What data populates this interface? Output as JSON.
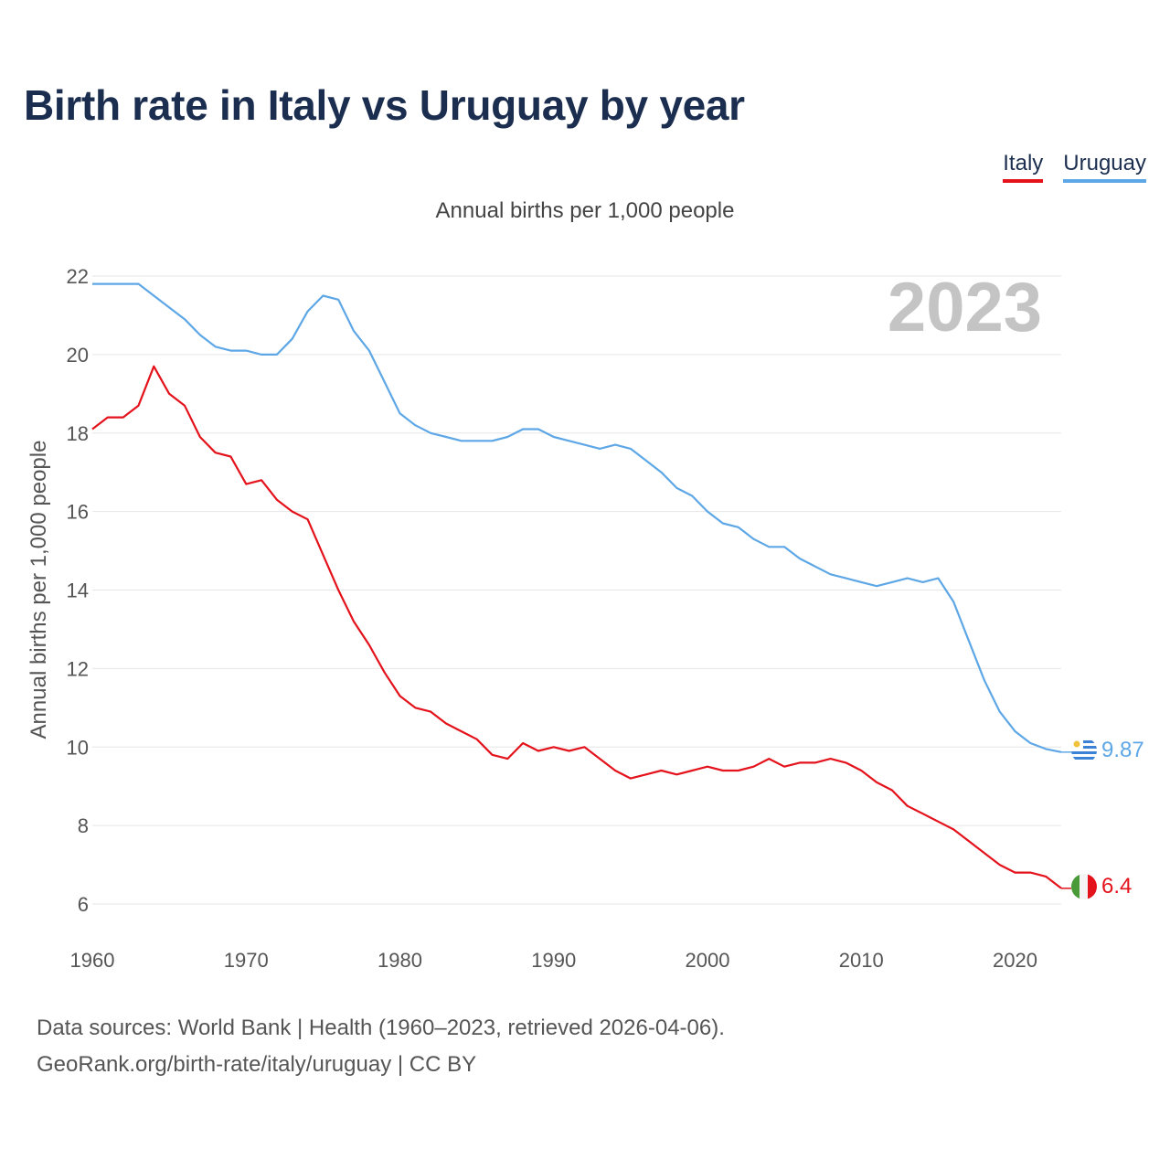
{
  "header": {
    "title": "Birth rate in Italy vs Uruguay by year",
    "subtitle": "Annual births per 1,000 people"
  },
  "legend": [
    {
      "label": "Italy",
      "color": "#e3121b"
    },
    {
      "label": "Uruguay",
      "color": "#5ea7e6"
    }
  ],
  "footer": {
    "line1": "Data sources: World Bank | Health (1960–2023, retrieved 2026-04-06).",
    "line2": "GeoRank.org/birth-rate/italy/uruguay | CC BY"
  },
  "chart_data": {
    "type": "line",
    "title": "Birth rate in Italy vs Uruguay by year",
    "subtitle": "Annual births per 1,000 people",
    "xlabel": "",
    "ylabel": "Annual births per 1,000 people",
    "xlim": [
      1960,
      2023
    ],
    "ylim": [
      5.5,
      23
    ],
    "x_ticks": [
      1960,
      1970,
      1980,
      1990,
      2000,
      2010,
      2020
    ],
    "y_ticks": [
      6,
      8,
      10,
      12,
      14,
      16,
      18,
      20,
      22
    ],
    "grid": true,
    "year_overlay": "2023",
    "legend_position": "top-right",
    "x": [
      1960,
      1961,
      1962,
      1963,
      1964,
      1965,
      1966,
      1967,
      1968,
      1969,
      1970,
      1971,
      1972,
      1973,
      1974,
      1975,
      1976,
      1977,
      1978,
      1979,
      1980,
      1981,
      1982,
      1983,
      1984,
      1985,
      1986,
      1987,
      1988,
      1989,
      1990,
      1991,
      1992,
      1993,
      1994,
      1995,
      1996,
      1997,
      1998,
      1999,
      2000,
      2001,
      2002,
      2003,
      2004,
      2005,
      2006,
      2007,
      2008,
      2009,
      2010,
      2011,
      2012,
      2013,
      2014,
      2015,
      2016,
      2017,
      2018,
      2019,
      2020,
      2021,
      2022,
      2023
    ],
    "series": [
      {
        "name": "Italy",
        "color": "#e3121b",
        "end_label": "6.4",
        "values": [
          18.1,
          18.4,
          18.4,
          18.7,
          19.7,
          19.0,
          18.7,
          17.9,
          17.5,
          17.4,
          16.7,
          16.8,
          16.3,
          16.0,
          15.8,
          14.9,
          14.0,
          13.2,
          12.6,
          11.9,
          11.3,
          11.0,
          10.9,
          10.6,
          10.4,
          10.2,
          9.8,
          9.7,
          10.1,
          9.9,
          10.0,
          9.9,
          10.0,
          9.7,
          9.4,
          9.2,
          9.3,
          9.4,
          9.3,
          9.4,
          9.5,
          9.4,
          9.4,
          9.5,
          9.7,
          9.5,
          9.6,
          9.6,
          9.7,
          9.6,
          9.4,
          9.1,
          8.9,
          8.5,
          8.3,
          8.1,
          7.9,
          7.6,
          7.3,
          7.0,
          6.8,
          6.8,
          6.7,
          6.4
        ]
      },
      {
        "name": "Uruguay",
        "color": "#5ea7e6",
        "end_label": "9.87",
        "values": [
          21.8,
          21.8,
          21.8,
          21.8,
          21.5,
          21.2,
          20.9,
          20.5,
          20.2,
          20.1,
          20.1,
          20.0,
          20.0,
          20.4,
          21.1,
          21.5,
          21.4,
          20.6,
          20.1,
          19.3,
          18.5,
          18.2,
          18.0,
          17.9,
          17.8,
          17.8,
          17.8,
          17.9,
          18.1,
          18.1,
          17.9,
          17.8,
          17.7,
          17.6,
          17.7,
          17.6,
          17.3,
          17.0,
          16.6,
          16.4,
          16.0,
          15.7,
          15.6,
          15.3,
          15.1,
          15.1,
          14.8,
          14.6,
          14.4,
          14.3,
          14.2,
          14.1,
          14.2,
          14.3,
          14.2,
          14.3,
          13.7,
          12.7,
          11.7,
          10.9,
          10.4,
          10.1,
          9.95,
          9.87
        ]
      }
    ]
  }
}
